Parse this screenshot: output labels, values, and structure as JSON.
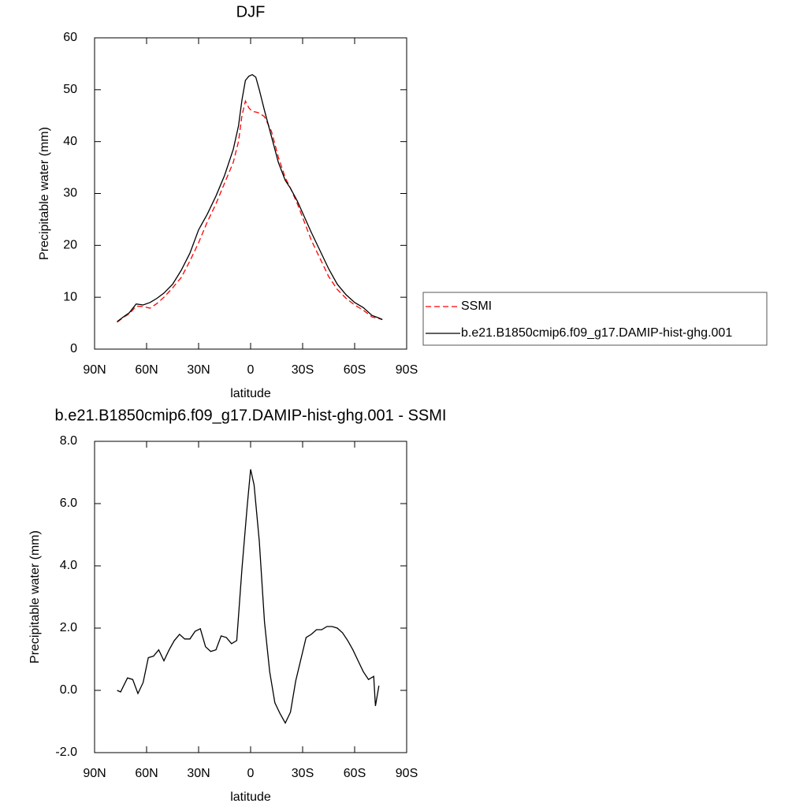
{
  "chart_data": [
    {
      "type": "line",
      "title": "DJF",
      "x_label": "latitude",
      "y_label": "Precipitable water (mm)",
      "x": [
        77,
        73,
        70,
        66,
        62,
        58,
        54,
        50,
        45,
        40,
        35,
        30,
        25,
        20,
        15,
        10,
        7,
        5,
        3,
        1,
        -1,
        -3,
        -5,
        -8,
        -12,
        -16,
        -20,
        -23,
        -27,
        -31,
        -35,
        -40,
        -45,
        -50,
        -55,
        -60,
        -65,
        -70,
        -74,
        -76
      ],
      "series": [
        {
          "name": "SSMI",
          "color": "#ff0000",
          "line_style": "dashed",
          "values": [
            5.2,
            6.2,
            6.8,
            8.3,
            8.2,
            7.9,
            8.8,
            10,
            11.8,
            13.8,
            17,
            20.5,
            24.5,
            28,
            32,
            36,
            40,
            45,
            47.8,
            46.5,
            45.8,
            45.7,
            45.5,
            44.8,
            42,
            37,
            33,
            31,
            28,
            24.5,
            21,
            17.5,
            14,
            11.5,
            9.8,
            8.5,
            7.5,
            6.2,
            5.9,
            5.7
          ]
        },
        {
          "name": "b.e21.B1850cmip6.f09_g17.DAMIP-hist-ghg.001",
          "color": "#000000",
          "line_style": "solid",
          "values": [
            5.3,
            6.3,
            7.0,
            8.7,
            8.5,
            9.0,
            9.8,
            10.8,
            12.5,
            15.2,
            18.5,
            23,
            26,
            29.5,
            33.5,
            38.5,
            43,
            48,
            51.8,
            52.6,
            52.9,
            52.4,
            50,
            46,
            41,
            36,
            32.5,
            31,
            28.5,
            25.5,
            22.5,
            19,
            15.5,
            12.5,
            10.5,
            9,
            8,
            6.5,
            6,
            5.7
          ]
        }
      ],
      "xlim": [
        90,
        -90
      ],
      "xticks": [
        {
          "value": 90,
          "label": "90N"
        },
        {
          "value": 60,
          "label": "60N"
        },
        {
          "value": 30,
          "label": "30N"
        },
        0,
        {
          "value": -30,
          "label": "30S"
        },
        {
          "value": -60,
          "label": "60S"
        },
        {
          "value": -90,
          "label": "90S"
        }
      ],
      "ylim": [
        0,
        60
      ],
      "yticks": [
        0,
        10,
        20,
        30,
        40,
        50,
        60
      ],
      "legend": "right"
    },
    {
      "type": "line",
      "title": "b.e21.B1850cmip6.f09_g17.DAMIP-hist-ghg.001 - SSMI",
      "x_label": "latitude",
      "y_label": "Precipitable water (mm)",
      "x": [
        77,
        75,
        71,
        68,
        65,
        62,
        59,
        56,
        53,
        50,
        47,
        44,
        41,
        38,
        35,
        32,
        29,
        26,
        23,
        20,
        17,
        14,
        11,
        8,
        5,
        2,
        0,
        -2,
        -5,
        -8,
        -11,
        -14,
        -17,
        -20,
        -23,
        -26,
        -29,
        -32,
        -35,
        -38,
        -41,
        -44,
        -47,
        -50,
        -53,
        -56,
        -59,
        -62,
        -65,
        -68,
        -71,
        -72,
        -74
      ],
      "series": [
        {
          "color": "#000000",
          "line_style": "solid",
          "values": [
            0,
            -0.05,
            0.4,
            0.35,
            -0.1,
            0.25,
            1.05,
            1.1,
            1.3,
            0.95,
            1.3,
            1.6,
            1.8,
            1.65,
            1.65,
            1.9,
            1.98,
            1.4,
            1.25,
            1.3,
            1.75,
            1.7,
            1.5,
            1.6,
            3.9,
            5.9,
            7.1,
            6.6,
            4.8,
            2.2,
            0.6,
            -0.4,
            -0.75,
            -1.05,
            -0.7,
            0.3,
            1.0,
            1.7,
            1.8,
            1.95,
            1.95,
            2.05,
            2.05,
            2.0,
            1.85,
            1.6,
            1.3,
            0.95,
            0.6,
            0.35,
            0.45,
            -0.5,
            0.15
          ]
        }
      ],
      "xlim": [
        90,
        -90
      ],
      "xticks": [
        {
          "value": 90,
          "label": "90N"
        },
        {
          "value": 60,
          "label": "60N"
        },
        {
          "value": 30,
          "label": "30N"
        },
        0,
        {
          "value": -30,
          "label": "30S"
        },
        {
          "value": -60,
          "label": "60S"
        },
        {
          "value": -90,
          "label": "90S"
        }
      ],
      "ylim": [
        -2,
        8
      ],
      "yticks": [
        {
          "value": -2,
          "label": "-2.0"
        },
        {
          "value": 0,
          "label": "0.0"
        },
        {
          "value": 2,
          "label": "2.0"
        },
        {
          "value": 4,
          "label": "4.0"
        },
        {
          "value": 6,
          "label": "6.0"
        },
        {
          "value": 8,
          "label": "8.0"
        }
      ]
    }
  ]
}
